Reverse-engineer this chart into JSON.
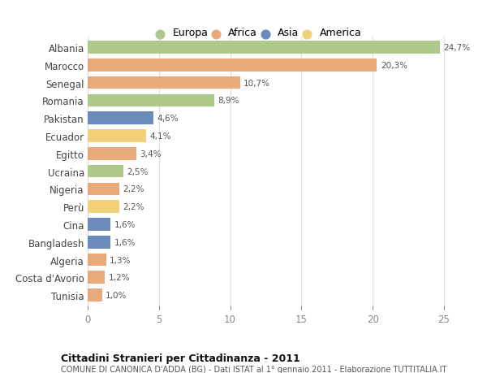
{
  "countries": [
    "Albania",
    "Marocco",
    "Senegal",
    "Romania",
    "Pakistan",
    "Ecuador",
    "Egitto",
    "Ucraina",
    "Nigeria",
    "Perù",
    "Cina",
    "Bangladesh",
    "Algeria",
    "Costa d'Avorio",
    "Tunisia"
  ],
  "values": [
    24.7,
    20.3,
    10.7,
    8.9,
    4.6,
    4.1,
    3.4,
    2.5,
    2.2,
    2.2,
    1.6,
    1.6,
    1.3,
    1.2,
    1.0
  ],
  "labels": [
    "24,7%",
    "20,3%",
    "10,7%",
    "8,9%",
    "4,6%",
    "4,1%",
    "3,4%",
    "2,5%",
    "2,2%",
    "2,2%",
    "1,6%",
    "1,6%",
    "1,3%",
    "1,2%",
    "1,0%"
  ],
  "continents": [
    "Europa",
    "Africa",
    "Africa",
    "Europa",
    "Asia",
    "America",
    "Africa",
    "Europa",
    "Africa",
    "America",
    "Asia",
    "Asia",
    "Africa",
    "Africa",
    "Africa"
  ],
  "colors": {
    "Europa": "#aec98a",
    "Africa": "#e8aa7a",
    "Asia": "#6b8cba",
    "America": "#f2d07a"
  },
  "legend_order": [
    "Europa",
    "Africa",
    "Asia",
    "America"
  ],
  "title1": "Cittadini Stranieri per Cittadinanza - 2011",
  "title2": "COMUNE DI CANONICA D'ADDA (BG) - Dati ISTAT al 1° gennaio 2011 - Elaborazione TUTTITALIA.IT",
  "xlim": [
    0,
    27
  ],
  "xticks": [
    0,
    5,
    10,
    15,
    20,
    25
  ],
  "bg_color": "#ffffff",
  "grid_color": "#dddddd",
  "bar_height": 0.72
}
